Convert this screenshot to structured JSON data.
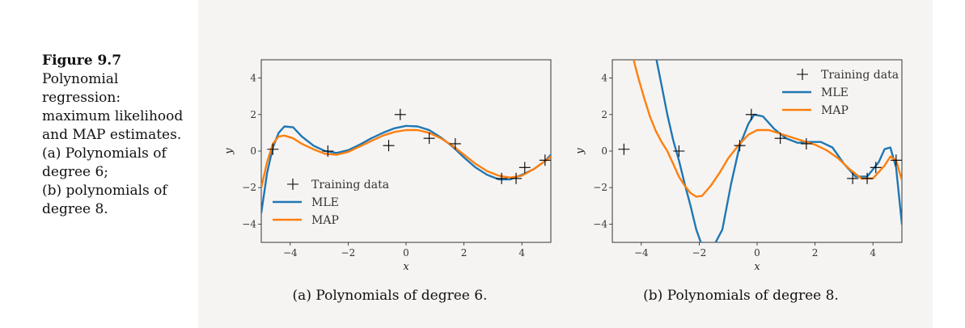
{
  "caption": {
    "title": "Figure 9.7",
    "lines": [
      "Polynomial",
      "regression:",
      "maximum likelihood",
      "and MAP estimates.",
      "(a) Polynomials of",
      "degree 6;",
      "(b) polynomials of",
      "degree 8."
    ]
  },
  "colors": {
    "mle": "#1f77b4",
    "map": "#ff7f0e",
    "data": "#000000"
  },
  "chart_data": [
    {
      "type": "line",
      "title": "",
      "xlabel": "x",
      "ylabel": "y",
      "xlim": [
        -5,
        5
      ],
      "ylim": [
        -5,
        5
      ],
      "xticks": [
        -4,
        -2,
        0,
        2,
        4
      ],
      "yticks": [
        -4,
        -2,
        0,
        2,
        4
      ],
      "xtick_labels": [
        "−4",
        "−2",
        "0",
        "2",
        "4"
      ],
      "ytick_labels": [
        "−4",
        "−2",
        "0",
        "2",
        "4"
      ],
      "caption": "(a) Polynomials of degree 6.",
      "legend_position": "lower-left",
      "legend": [
        "Training data",
        "MLE",
        "MAP"
      ],
      "training_data": {
        "x": [
          -4.6,
          -2.7,
          -0.6,
          -0.2,
          0.8,
          1.7,
          3.3,
          3.8,
          4.1,
          4.8
        ],
        "y": [
          0.1,
          0.0,
          0.3,
          2.0,
          0.7,
          0.4,
          -1.5,
          -1.5,
          -0.9,
          -0.5
        ]
      },
      "series": [
        {
          "name": "MLE",
          "x": [
            -5.0,
            -4.8,
            -4.6,
            -4.4,
            -4.2,
            -3.9,
            -3.6,
            -3.2,
            -2.8,
            -2.4,
            -2.0,
            -1.6,
            -1.2,
            -0.8,
            -0.4,
            0.0,
            0.4,
            0.8,
            1.2,
            1.6,
            2.0,
            2.4,
            2.8,
            3.2,
            3.6,
            4.0,
            4.4,
            4.8,
            5.0
          ],
          "y": [
            -3.4,
            -1.2,
            0.2,
            1.0,
            1.35,
            1.3,
            0.8,
            0.3,
            0.0,
            -0.1,
            0.05,
            0.35,
            0.7,
            1.0,
            1.25,
            1.38,
            1.35,
            1.15,
            0.75,
            0.25,
            -0.35,
            -0.9,
            -1.3,
            -1.55,
            -1.55,
            -1.3,
            -1.0,
            -0.55,
            -0.2
          ]
        },
        {
          "name": "MAP",
          "x": [
            -5.0,
            -4.8,
            -4.6,
            -4.4,
            -4.2,
            -3.9,
            -3.6,
            -3.2,
            -2.8,
            -2.4,
            -2.0,
            -1.6,
            -1.2,
            -0.8,
            -0.4,
            0.0,
            0.4,
            0.8,
            1.2,
            1.6,
            2.0,
            2.4,
            2.8,
            3.2,
            3.6,
            4.0,
            4.4,
            4.8,
            5.0
          ],
          "y": [
            -2.0,
            -0.6,
            0.4,
            0.8,
            0.85,
            0.7,
            0.4,
            0.1,
            -0.15,
            -0.2,
            -0.05,
            0.25,
            0.55,
            0.85,
            1.05,
            1.15,
            1.15,
            1.0,
            0.7,
            0.3,
            -0.2,
            -0.7,
            -1.1,
            -1.35,
            -1.45,
            -1.35,
            -1.0,
            -0.55,
            -0.3
          ]
        }
      ]
    },
    {
      "type": "line",
      "title": "",
      "xlabel": "x",
      "ylabel": "y",
      "xlim": [
        -5,
        5
      ],
      "ylim": [
        -5,
        5
      ],
      "xticks": [
        -4,
        -2,
        0,
        2,
        4
      ],
      "yticks": [
        -4,
        -2,
        0,
        2,
        4
      ],
      "xtick_labels": [
        "−4",
        "−2",
        "0",
        "2",
        "4"
      ],
      "ytick_labels": [
        "−4",
        "−2",
        "0",
        "2",
        "4"
      ],
      "caption": "(b) Polynomials of degree 8.",
      "legend_position": "upper-right",
      "legend": [
        "Training data",
        "MLE",
        "MAP"
      ],
      "training_data": {
        "x": [
          -4.6,
          -2.7,
          -0.6,
          -0.2,
          0.8,
          1.7,
          3.3,
          3.8,
          4.1,
          4.8
        ],
        "y": [
          0.1,
          0.0,
          0.3,
          2.0,
          0.7,
          0.4,
          -1.5,
          -1.5,
          -0.9,
          -0.5
        ]
      },
      "series": [
        {
          "name": "MLE",
          "x": [
            -3.5,
            -3.3,
            -3.1,
            -2.9,
            -2.7,
            -2.5,
            -2.3,
            -2.1,
            -1.9,
            -1.7,
            -1.5,
            -1.2,
            -0.9,
            -0.6,
            -0.3,
            -0.1,
            0.2,
            0.6,
            1.0,
            1.4,
            1.8,
            2.2,
            2.6,
            3.0,
            3.4,
            3.8,
            4.2,
            4.4,
            4.6,
            4.8,
            5.0
          ],
          "y": [
            5.2,
            3.6,
            2.0,
            0.6,
            -0.5,
            -1.8,
            -3.0,
            -4.3,
            -5.2,
            -5.2,
            -5.2,
            -4.3,
            -1.8,
            0.3,
            1.5,
            2.0,
            1.9,
            1.2,
            0.7,
            0.45,
            0.5,
            0.5,
            0.2,
            -0.7,
            -1.4,
            -1.4,
            -0.6,
            0.1,
            0.2,
            -0.9,
            -4.0
          ]
        },
        {
          "name": "MAP",
          "x": [
            -4.3,
            -4.1,
            -3.9,
            -3.7,
            -3.5,
            -3.3,
            -3.1,
            -2.9,
            -2.7,
            -2.5,
            -2.3,
            -2.1,
            -1.9,
            -1.6,
            -1.3,
            -1.0,
            -0.6,
            -0.3,
            0.0,
            0.4,
            0.8,
            1.2,
            1.6,
            2.0,
            2.4,
            2.8,
            3.2,
            3.6,
            4.0,
            4.4,
            4.6,
            4.8,
            5.0
          ],
          "y": [
            5.2,
            4.0,
            2.9,
            1.9,
            1.1,
            0.5,
            0.0,
            -0.7,
            -1.4,
            -1.9,
            -2.3,
            -2.5,
            -2.45,
            -1.9,
            -1.2,
            -0.4,
            0.4,
            0.9,
            1.15,
            1.15,
            0.95,
            0.75,
            0.55,
            0.35,
            0.05,
            -0.4,
            -1.0,
            -1.5,
            -1.5,
            -0.8,
            -0.3,
            -0.5,
            -1.6
          ]
        }
      ]
    }
  ]
}
